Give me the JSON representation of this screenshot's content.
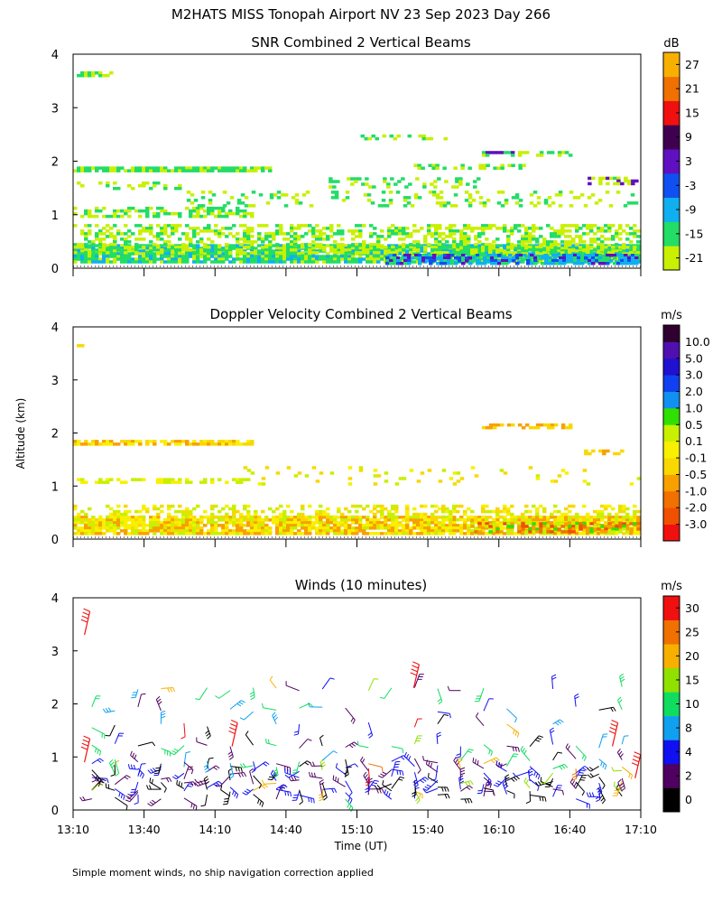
{
  "figure": {
    "title": "M2HATS MISS Tonopah Airport NV  23 Sep 2023 Day 266",
    "footnote": "Simple moment winds, no ship navigation correction applied",
    "ylabel": "Altitude (km)",
    "xlabel": "Time (UT)"
  },
  "chart_data": [
    {
      "type": "heatmap",
      "title": "SNR Combined 2 Vertical Beams",
      "colorbar_unit": "dB",
      "ylim": [
        0,
        4
      ],
      "yticks": [
        "0",
        "1",
        "2",
        "3",
        "4"
      ],
      "xlim": [
        "13:10",
        "17:10"
      ],
      "colorbar": {
        "colors": [
          "#c8f000",
          "#22dd66",
          "#10b0f0",
          "#1050f0",
          "#6010c0",
          "#400050",
          "#f01010",
          "#f07000",
          "#f8b000"
        ],
        "labels": [
          "-21",
          "-15",
          "-9",
          "-3",
          "3",
          "9",
          "15",
          "21",
          "27"
        ]
      },
      "layers": [
        {
          "alt": 0.28,
          "thick": 0.34,
          "density": 0.9,
          "cov": [
            0,
            1
          ],
          "cs": [
            0,
            1,
            1,
            2
          ]
        },
        {
          "alt": 0.55,
          "thick": 0.55,
          "density": 0.45,
          "cov": [
            0,
            1
          ],
          "cs": [
            0,
            0,
            1
          ]
        },
        {
          "alt": 0.18,
          "thick": 0.18,
          "density": 0.75,
          "cov": [
            0.55,
            1
          ],
          "cs": [
            1,
            2,
            2,
            3,
            4
          ]
        },
        {
          "alt": 1.05,
          "thick": 0.2,
          "density": 0.5,
          "cov": [
            0,
            0.32
          ],
          "cs": [
            0,
            1
          ]
        },
        {
          "alt": 1.85,
          "thick": 0.1,
          "density": 0.85,
          "cov": [
            0,
            0.35
          ],
          "cs": [
            1,
            1,
            0
          ]
        },
        {
          "alt": 1.55,
          "thick": 0.14,
          "density": 0.3,
          "cov": [
            0,
            0.2
          ],
          "cs": [
            0,
            1
          ]
        },
        {
          "alt": 2.15,
          "thick": 0.08,
          "density": 0.6,
          "cov": [
            0.72,
            0.88
          ],
          "cs": [
            0,
            1,
            4
          ]
        },
        {
          "alt": 2.45,
          "thick": 0.1,
          "density": 0.4,
          "cov": [
            0.5,
            0.66
          ],
          "cs": [
            0,
            1
          ]
        },
        {
          "alt": 1.9,
          "thick": 0.1,
          "density": 0.35,
          "cov": [
            0.6,
            0.8
          ],
          "cs": [
            0,
            1
          ]
        },
        {
          "alt": 1.65,
          "thick": 0.12,
          "density": 0.5,
          "cov": [
            0.9,
            1
          ],
          "cs": [
            0,
            1,
            4
          ]
        },
        {
          "alt": 3.65,
          "thick": 0.06,
          "density": 0.6,
          "cov": [
            0,
            0.08
          ],
          "cs": [
            0,
            1
          ]
        },
        {
          "alt": 1.3,
          "thick": 0.3,
          "density": 0.18,
          "cov": [
            0.2,
            1
          ],
          "cs": [
            0,
            1
          ]
        },
        {
          "alt": 1.6,
          "thick": 0.2,
          "density": 0.25,
          "cov": [
            0.45,
            0.72
          ],
          "cs": [
            0,
            1
          ]
        }
      ]
    },
    {
      "type": "heatmap",
      "title": "Doppler Velocity Combined 2 Vertical Beams",
      "colorbar_unit": "m/s",
      "ylim": [
        0,
        4
      ],
      "yticks": [
        "0",
        "1",
        "2",
        "3",
        "4"
      ],
      "xlim": [
        "13:10",
        "17:10"
      ],
      "colorbar": {
        "colors": [
          "#f01010",
          "#f05000",
          "#f07000",
          "#f8a000",
          "#f8d800",
          "#f8f000",
          "#c8f000",
          "#30e000",
          "#1090f0",
          "#1040f0",
          "#2010d0",
          "#5010b0",
          "#300030"
        ],
        "labels": [
          "-3.0",
          "-2.0",
          "-1.0",
          "-0.5",
          "-0.1",
          "0.1",
          "0.5",
          "1.0",
          "2.0",
          "3.0",
          "5.0",
          "10.0"
        ]
      },
      "layers": [
        {
          "alt": 0.28,
          "thick": 0.32,
          "density": 0.85,
          "cov": [
            0,
            1
          ],
          "cs": [
            3,
            4,
            5,
            5,
            6,
            3
          ]
        },
        {
          "alt": 0.5,
          "thick": 0.3,
          "density": 0.35,
          "cov": [
            0,
            1
          ],
          "cs": [
            4,
            5,
            6
          ]
        },
        {
          "alt": 0.22,
          "thick": 0.2,
          "density": 0.55,
          "cov": [
            0.7,
            1
          ],
          "cs": [
            1,
            2,
            3,
            6,
            7
          ]
        },
        {
          "alt": 1.1,
          "thick": 0.1,
          "density": 0.45,
          "cov": [
            0,
            0.32
          ],
          "cs": [
            5,
            6
          ]
        },
        {
          "alt": 1.82,
          "thick": 0.1,
          "density": 0.8,
          "cov": [
            0,
            0.32
          ],
          "cs": [
            3,
            4,
            5
          ]
        },
        {
          "alt": 2.15,
          "thick": 0.06,
          "density": 0.6,
          "cov": [
            0.72,
            0.88
          ],
          "cs": [
            3,
            4
          ]
        },
        {
          "alt": 1.65,
          "thick": 0.08,
          "density": 0.5,
          "cov": [
            0.9,
            0.97
          ],
          "cs": [
            4,
            3
          ]
        },
        {
          "alt": 3.65,
          "thick": 0.05,
          "density": 0.5,
          "cov": [
            0,
            0.05
          ],
          "cs": [
            4
          ]
        },
        {
          "alt": 1.2,
          "thick": 0.35,
          "density": 0.07,
          "cov": [
            0.3,
            1
          ],
          "cs": [
            4,
            5,
            6
          ]
        }
      ]
    },
    {
      "type": "scatter",
      "title": "Winds (10 minutes)",
      "colorbar_unit": "m/s",
      "ylim": [
        0,
        4
      ],
      "yticks": [
        "0",
        "1",
        "2",
        "3",
        "4"
      ],
      "xticks": [
        "13:10",
        "13:40",
        "14:10",
        "14:40",
        "15:10",
        "15:40",
        "16:10",
        "16:40",
        "17:10"
      ],
      "colorbar": {
        "colors": [
          "#000000",
          "#500060",
          "#1010f0",
          "#10a0f0",
          "#10dd60",
          "#90e000",
          "#f8b000",
          "#f07000",
          "#f01010"
        ],
        "labels": [
          "0",
          "2",
          "4",
          "8",
          "10",
          "15",
          "20",
          "25",
          "30"
        ]
      },
      "wind_levels": [
        0.25,
        0.4,
        0.6,
        0.8,
        1.2,
        1.6,
        1.9,
        2.3
      ],
      "wind_time_steps": 24
    }
  ]
}
